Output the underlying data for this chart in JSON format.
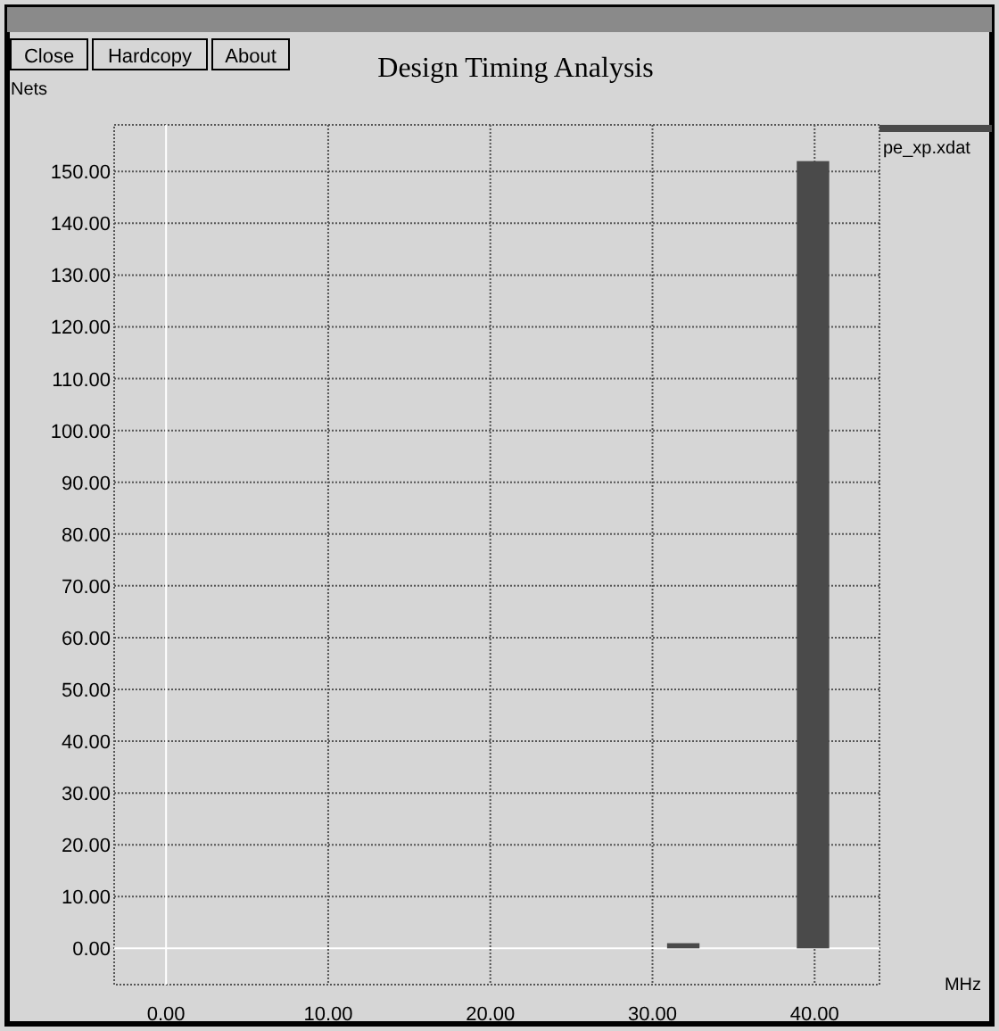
{
  "chart_data": {
    "type": "histogram",
    "title": "Design Timing Analysis",
    "xlabel": "MHz",
    "ylabel": "Nets",
    "annotations": [
      "Close",
      "Hardcopy",
      "About"
    ],
    "bins": [
      30.9,
      32.9,
      34.9,
      36.9,
      38.9,
      40.9
    ],
    "series": [
      {
        "name": "pe_xp.xdat",
        "color": "#4a4a4a",
        "values": [
          1,
          0,
          0,
          0,
          152
        ]
      }
    ],
    "xlim": [
      -3.2,
      44
    ],
    "ylim": [
      -7,
      159
    ],
    "xticks": [
      {
        "value": 0,
        "label": "0.00"
      },
      {
        "value": 10,
        "label": "10.00"
      },
      {
        "value": 20,
        "label": "20.00"
      },
      {
        "value": 30,
        "label": "30.00"
      },
      {
        "value": 40,
        "label": "40.00"
      }
    ],
    "yticks": [
      {
        "value": 0,
        "label": "0.00"
      },
      {
        "value": 10,
        "label": "10.00"
      },
      {
        "value": 20,
        "label": "20.00"
      },
      {
        "value": 30,
        "label": "30.00"
      },
      {
        "value": 40,
        "label": "40.00"
      },
      {
        "value": 50,
        "label": "50.00"
      },
      {
        "value": 60,
        "label": "60.00"
      },
      {
        "value": 70,
        "label": "70.00"
      },
      {
        "value": 80,
        "label": "80.00"
      },
      {
        "value": 90,
        "label": "90.00"
      },
      {
        "value": 100,
        "label": "100.00"
      },
      {
        "value": 110,
        "label": "110.00"
      },
      {
        "value": 120,
        "label": "120.00"
      },
      {
        "value": 130,
        "label": "130.00"
      },
      {
        "value": 140,
        "label": "140.00"
      },
      {
        "value": 150,
        "label": "150.00"
      }
    ],
    "grid": true,
    "legend": "right"
  }
}
